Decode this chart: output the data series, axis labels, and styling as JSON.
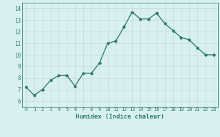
{
  "x": [
    0,
    1,
    2,
    3,
    4,
    5,
    6,
    7,
    8,
    9,
    10,
    11,
    12,
    13,
    14,
    15,
    16,
    17,
    18,
    19,
    20,
    21,
    22,
    23
  ],
  "y": [
    7.2,
    6.5,
    7.0,
    7.8,
    8.2,
    8.2,
    7.3,
    8.4,
    8.4,
    9.3,
    11.0,
    11.2,
    12.4,
    13.7,
    13.1,
    13.1,
    13.6,
    12.7,
    12.1,
    11.5,
    11.3,
    10.6,
    10.0,
    10.0
  ],
  "line_color": "#2e7d6e",
  "marker": "o",
  "marker_size": 2.2,
  "bg_color": "#d8f0ef",
  "grid_color": "#c8dede",
  "xlabel": "Humidex (Indice chaleur)",
  "xlim": [
    -0.5,
    23.5
  ],
  "ylim": [
    5.5,
    14.5
  ],
  "xticks": [
    0,
    1,
    2,
    3,
    4,
    5,
    6,
    7,
    8,
    9,
    10,
    11,
    12,
    13,
    14,
    15,
    16,
    17,
    18,
    19,
    20,
    21,
    22,
    23
  ],
  "xtick_labels": [
    "0",
    "1",
    "2",
    "3",
    "4",
    "5",
    "6",
    "7",
    "8",
    "9",
    "10",
    "11",
    "12",
    "13",
    "14",
    "15",
    "16",
    "17",
    "18",
    "19",
    "20",
    "21",
    "22",
    "23"
  ],
  "yticks": [
    6,
    7,
    8,
    9,
    10,
    11,
    12,
    13,
    14
  ],
  "line_width": 1.0
}
